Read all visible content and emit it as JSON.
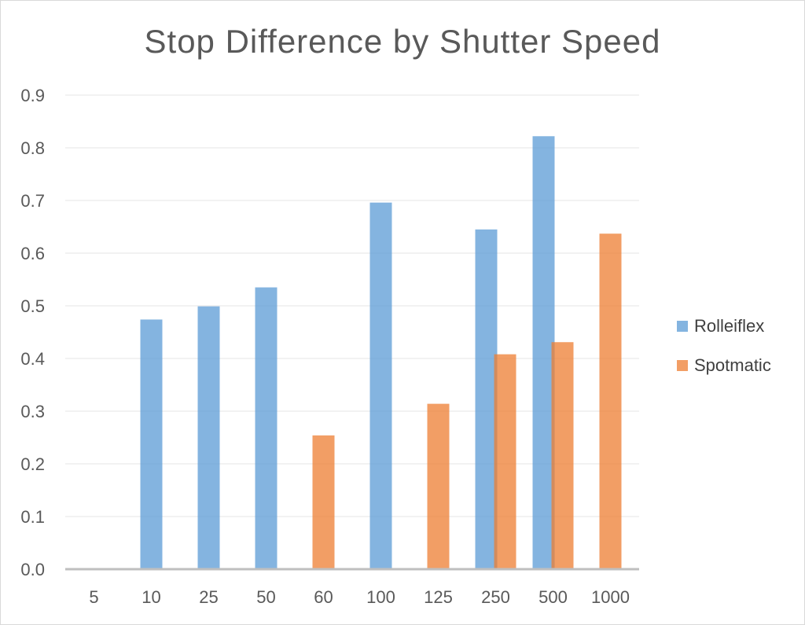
{
  "chart_data": {
    "type": "bar",
    "title": "Stop Difference by Shutter Speed",
    "xlabel": "",
    "ylabel": "",
    "categories": [
      "5",
      "10",
      "25",
      "50",
      "60",
      "100",
      "125",
      "250",
      "500",
      "1000"
    ],
    "series": [
      {
        "name": "Rolleiflex",
        "color": "#5b9bd5",
        "values": [
          null,
          0.474,
          0.499,
          0.535,
          null,
          0.696,
          null,
          0.645,
          0.822,
          null
        ]
      },
      {
        "name": "Spotmatic",
        "color": "#ed7d31",
        "values": [
          null,
          null,
          null,
          null,
          0.254,
          null,
          0.314,
          0.408,
          0.431,
          0.637
        ]
      }
    ],
    "ylim": [
      0,
      0.9
    ],
    "yticks": [
      "0.0",
      "0.1",
      "0.2",
      "0.3",
      "0.4",
      "0.5",
      "0.6",
      "0.7",
      "0.8",
      "0.9"
    ],
    "grid": true,
    "legend_position": "right"
  }
}
